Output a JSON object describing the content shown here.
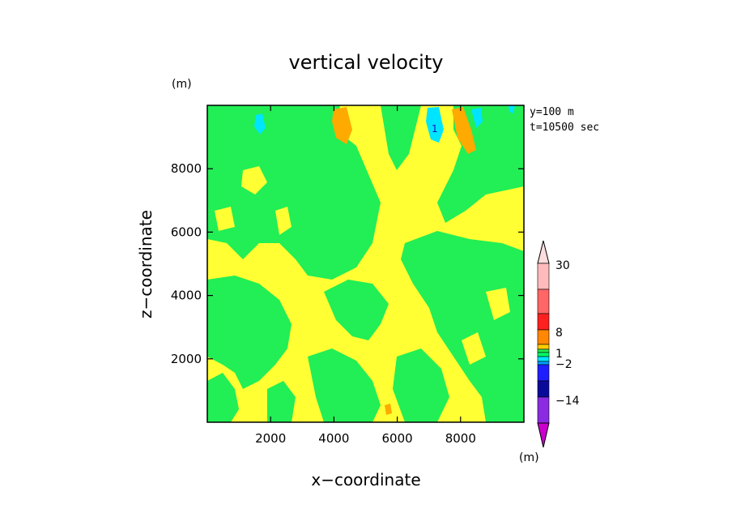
{
  "chart_data": {
    "type": "contour",
    "title": "vertical velocity",
    "xlabel": "x−coordinate",
    "ylabel": "z−coordinate",
    "y_unit": "(m)",
    "colorbar_unit": "(m)",
    "annotations": [
      "y=100 m",
      "t=10500 sec"
    ],
    "xlim": [
      0,
      10000
    ],
    "ylim": [
      0,
      10000
    ],
    "x_ticks": [
      "2000",
      "4000",
      "6000",
      "8000"
    ],
    "y_ticks": [
      "2000",
      "4000",
      "6000",
      "8000"
    ],
    "x_tick_values": [
      2000,
      4000,
      6000,
      8000
    ],
    "y_tick_values": [
      2000,
      4000,
      6000,
      8000
    ],
    "contour_label": "1",
    "colorbar": {
      "labels": [
        {
          "text": "30",
          "value": 30
        },
        {
          "text": "8",
          "value": 8
        },
        {
          "text": "1",
          "value": 1
        },
        {
          "text": "−2",
          "value": -2
        },
        {
          "text": "−14",
          "value": -14
        }
      ],
      "colors": [
        "#cc00cc",
        "#8a2be2",
        "#1e1eff",
        "#0a0a9a",
        "#00a0ff",
        "#00e5ff",
        "#00ff66",
        "#22ee55",
        "#ffff33",
        "#ffcc00",
        "#ff8800",
        "#ff3333",
        "#ff6666",
        "#ff9999",
        "#ffbbbb",
        "#ffdddd"
      ]
    },
    "field_levels": [
      {
        "name": "yellow",
        "color": "#ffff33"
      },
      {
        "name": "green",
        "color": "#22ee55"
      },
      {
        "name": "orange",
        "color": "#ffaa00"
      },
      {
        "name": "cyan",
        "color": "#00e5ff"
      }
    ]
  }
}
